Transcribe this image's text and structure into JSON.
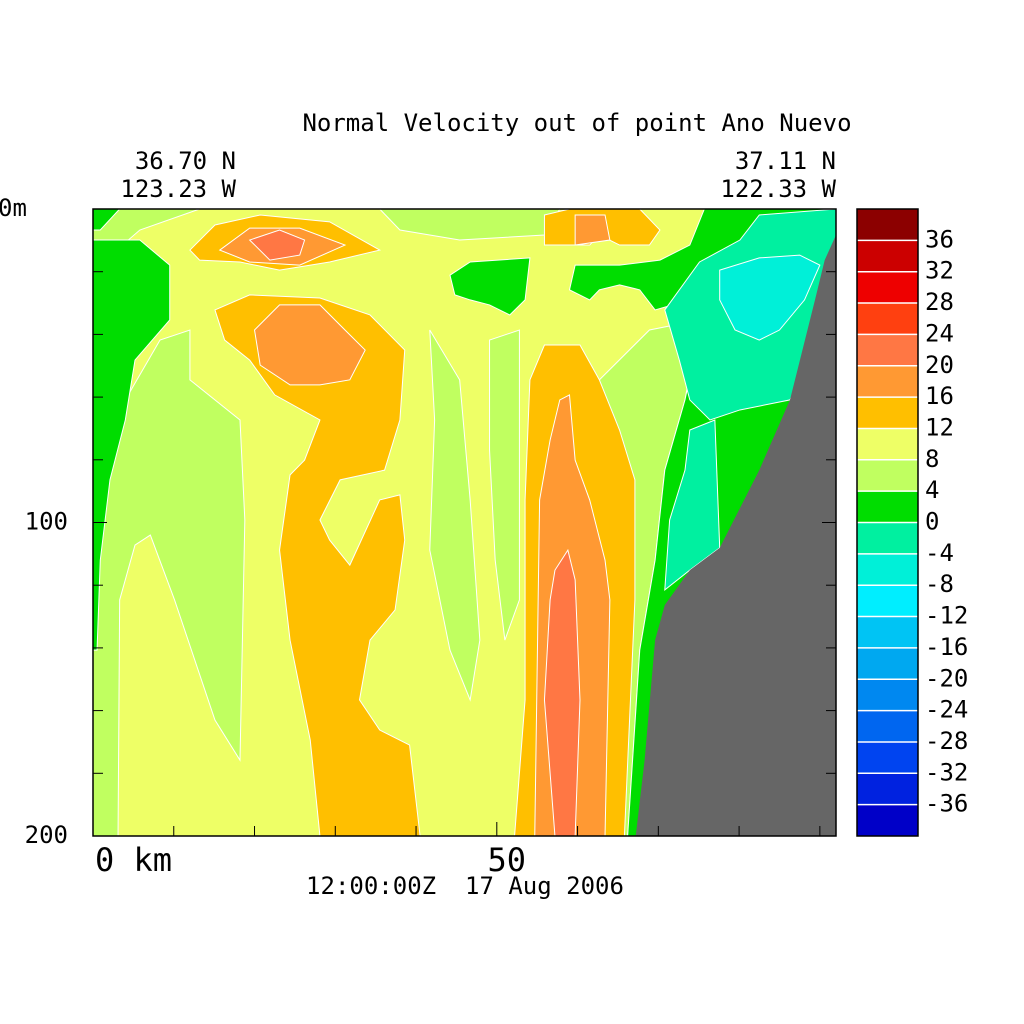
{
  "chart_data": {
    "type": "contour",
    "title": "Normal Velocity out of point Ano Nuevo",
    "left_labels": [
      "36.70 N",
      "123.23 W"
    ],
    "right_labels": [
      "37.11 N",
      "122.33 W"
    ],
    "time_label": "12:00:00Z  17 Aug 2006",
    "xlim": [
      0,
      92
    ],
    "xticks": [
      {
        "value": 0,
        "label": "0 km"
      },
      50
    ],
    "xminor": [
      10,
      20,
      30,
      40,
      60,
      70,
      80,
      90
    ],
    "ylim": [
      0,
      200
    ],
    "yticks": [
      {
        "value": 0,
        "label": "0m"
      },
      100,
      200
    ],
    "yminor": [
      20,
      40,
      60,
      80,
      120,
      140,
      160,
      180
    ],
    "levels": [
      -40,
      -36,
      -32,
      -28,
      -24,
      -20,
      -16,
      -12,
      -8,
      -4,
      0,
      4,
      8,
      12,
      16,
      20,
      24,
      28,
      32,
      36,
      40
    ],
    "colors": [
      "#0000c8",
      "#0022e0",
      "#0044f0",
      "#0066f0",
      "#0088f0",
      "#00a8f0",
      "#00c4f4",
      "#00eeff",
      "#00f0d8",
      "#00f0a0",
      "#00dd00",
      "#c0ff60",
      "#eeff66",
      "#ffbf00",
      "#ff9933",
      "#ff7744",
      "#ff4010",
      "#ee0000",
      "#cc0000",
      "#8c0000"
    ],
    "colorbar_ticks": [
      36,
      32,
      28,
      24,
      20,
      16,
      12,
      8,
      4,
      0,
      -4,
      -8,
      -12,
      -16,
      -20,
      -24,
      -28,
      -32,
      -36
    ],
    "base_level": 8,
    "regions": [
      {
        "level": 4,
        "points": [
          [
            0,
            140.7
          ],
          [
            0.9,
            92.8
          ],
          [
            4,
            60.9
          ],
          [
            8.3,
            41.8
          ],
          [
            12,
            38.6
          ],
          [
            12,
            54.5
          ],
          [
            18.2,
            67.3
          ],
          [
            18.8,
            99.2
          ],
          [
            18.2,
            175.8
          ],
          [
            15.1,
            163
          ],
          [
            10.1,
            124.7
          ],
          [
            7.1,
            104
          ],
          [
            5.2,
            107.2
          ],
          [
            3.3,
            124.7
          ],
          [
            3.1,
            200
          ],
          [
            0,
            200
          ]
        ]
      },
      {
        "level": 4,
        "points": [
          [
            0,
            0
          ],
          [
            13.2,
            0
          ],
          [
            5.8,
            6.7
          ],
          [
            1.5,
            16.3
          ],
          [
            0,
            19.5
          ]
        ]
      },
      {
        "level": 4,
        "points": [
          [
            41.7,
            38.6
          ],
          [
            45.4,
            54.5
          ],
          [
            46.7,
            92.8
          ],
          [
            47.9,
            137.5
          ],
          [
            46.7,
            156.6
          ],
          [
            44.2,
            140.7
          ],
          [
            41.7,
            108.8
          ],
          [
            42.3,
            67.3
          ]
        ]
      },
      {
        "level": 4,
        "points": [
          [
            49.1,
            41.8
          ],
          [
            52.8,
            38.6
          ],
          [
            52.8,
            124.7
          ],
          [
            51,
            137.5
          ],
          [
            49.8,
            112
          ],
          [
            49.1,
            76.9
          ]
        ]
      },
      {
        "level": 4,
        "points": [
          [
            62.7,
            54.5
          ],
          [
            68.9,
            38.6
          ],
          [
            75.1,
            35.4
          ],
          [
            73.3,
            60.9
          ],
          [
            70.8,
            83.3
          ],
          [
            69.6,
            112
          ],
          [
            67.7,
            140.7
          ],
          [
            66.2,
            200
          ],
          [
            63.4,
            200
          ],
          [
            65.2,
            124.7
          ],
          [
            65.8,
            86.4
          ]
        ]
      },
      {
        "level": 4,
        "points": [
          [
            35.5,
            0
          ],
          [
            57.8,
            0
          ],
          [
            55.9,
            8.3
          ],
          [
            45.4,
            9.9
          ],
          [
            38,
            6.7
          ]
        ]
      },
      {
        "level": 0,
        "points": [
          [
            0,
            9.9
          ],
          [
            5.8,
            9.9
          ],
          [
            9.5,
            17.9
          ],
          [
            9.5,
            35.4
          ],
          [
            5.2,
            48.2
          ],
          [
            4,
            67.3
          ],
          [
            2.1,
            86.4
          ],
          [
            0.9,
            112
          ],
          [
            0.5,
            140.7
          ],
          [
            0,
            140.7
          ]
        ]
      },
      {
        "level": 0,
        "points": [
          [
            0,
            0
          ],
          [
            3.3,
            0
          ],
          [
            0.9,
            6.7
          ],
          [
            0,
            6.7
          ]
        ]
      },
      {
        "level": 0,
        "points": [
          [
            66.2,
            200
          ],
          [
            67.7,
            140.7
          ],
          [
            69.6,
            112
          ],
          [
            70.8,
            83.3
          ],
          [
            73.3,
            60.9
          ],
          [
            75.1,
            38.6
          ],
          [
            73.9,
            29
          ],
          [
            69.6,
            32.2
          ],
          [
            67.7,
            25.8
          ],
          [
            65.2,
            24.2
          ],
          [
            62.7,
            25.8
          ],
          [
            61.5,
            29
          ],
          [
            59,
            25.8
          ],
          [
            59.7,
            17.9
          ],
          [
            65.2,
            17.9
          ],
          [
            70.2,
            16.3
          ],
          [
            73.9,
            11.5
          ],
          [
            75.7,
            0
          ],
          [
            92,
            0
          ],
          [
            92,
            200
          ]
        ]
      },
      {
        "level": 0,
        "points": [
          [
            44.2,
            21.1
          ],
          [
            46.7,
            16.9
          ],
          [
            54.1,
            15.6
          ],
          [
            53.5,
            29
          ],
          [
            51.6,
            33.8
          ],
          [
            49.1,
            30.6
          ],
          [
            46.7,
            29
          ],
          [
            44.8,
            27.4
          ]
        ]
      },
      {
        "level": -4,
        "points": [
          [
            70.8,
            32.2
          ],
          [
            75.1,
            16.9
          ],
          [
            80.1,
            9.9
          ],
          [
            82.5,
            1.9
          ],
          [
            92,
            0
          ],
          [
            92,
            29
          ],
          [
            86.3,
            60.9
          ],
          [
            80.1,
            64.1
          ],
          [
            76.4,
            67.3
          ],
          [
            73.9,
            60.9
          ],
          [
            72.6,
            48.2
          ]
        ]
      },
      {
        "level": -4,
        "points": [
          [
            70.8,
            121.5
          ],
          [
            71.4,
            99.2
          ],
          [
            73.3,
            83.3
          ],
          [
            73.9,
            70.5
          ],
          [
            77,
            67.3
          ],
          [
            77.6,
            108.1
          ],
          [
            73.9,
            115.2
          ]
        ]
      },
      {
        "level": -8,
        "points": [
          [
            77.6,
            19.5
          ],
          [
            82.5,
            15.6
          ],
          [
            87.5,
            14.7
          ],
          [
            90,
            17.9
          ],
          [
            88.1,
            29
          ],
          [
            85,
            38.6
          ],
          [
            82.5,
            41.8
          ],
          [
            79.5,
            38.6
          ],
          [
            77.6,
            29
          ]
        ]
      },
      {
        "level": 12,
        "points": [
          [
            12,
            13.1
          ],
          [
            15.1,
            5.1
          ],
          [
            20.7,
            1.9
          ],
          [
            29.3,
            4.1
          ],
          [
            35.5,
            13.1
          ],
          [
            29.3,
            16.9
          ],
          [
            23.1,
            19.5
          ],
          [
            18.2,
            16.9
          ],
          [
            13.2,
            16.3
          ]
        ]
      },
      {
        "level": 12,
        "points": [
          [
            15.1,
            32.2
          ],
          [
            19.4,
            27.4
          ],
          [
            28.1,
            28.4
          ],
          [
            34.3,
            33.8
          ],
          [
            38.6,
            45
          ],
          [
            38,
            67.3
          ],
          [
            36.1,
            83.3
          ],
          [
            30.6,
            86.4
          ],
          [
            28.1,
            99.2
          ],
          [
            29.3,
            105.6
          ],
          [
            31.8,
            113.6
          ],
          [
            35.5,
            92.8
          ],
          [
            38,
            91.2
          ],
          [
            38.6,
            105.6
          ],
          [
            37.4,
            127.9
          ],
          [
            34.3,
            137.5
          ],
          [
            33,
            156.6
          ],
          [
            35.5,
            166.2
          ],
          [
            39.2,
            171
          ],
          [
            40.5,
            200
          ],
          [
            28.1,
            200
          ],
          [
            26.9,
            169.4
          ],
          [
            24.4,
            137.5
          ],
          [
            23.1,
            108.8
          ],
          [
            24.4,
            84.8
          ],
          [
            26.2,
            80.1
          ],
          [
            28.1,
            67.3
          ],
          [
            22.5,
            59.3
          ],
          [
            19.4,
            48.2
          ],
          [
            16.3,
            41.8
          ]
        ]
      },
      {
        "level": 12,
        "points": [
          [
            55.9,
            1.9
          ],
          [
            59,
            0
          ],
          [
            67.7,
            0
          ],
          [
            70.2,
            6.7
          ],
          [
            68.9,
            11.5
          ],
          [
            65.2,
            11.5
          ],
          [
            62.7,
            8.3
          ],
          [
            61.5,
            11.5
          ],
          [
            55.9,
            11.5
          ]
        ]
      },
      {
        "level": 12,
        "points": [
          [
            52.2,
            200
          ],
          [
            53.5,
            156.6
          ],
          [
            53.5,
            92.8
          ],
          [
            54.1,
            54.5
          ],
          [
            55.9,
            43.4
          ],
          [
            60.3,
            43.4
          ],
          [
            62.7,
            54.5
          ],
          [
            65.2,
            70.5
          ],
          [
            67.1,
            86.4
          ],
          [
            67.1,
            124.7
          ],
          [
            65.8,
            200
          ]
        ]
      },
      {
        "level": 16,
        "points": [
          [
            15.7,
            13.1
          ],
          [
            19.4,
            6.1
          ],
          [
            25.6,
            6.1
          ],
          [
            31.2,
            11.5
          ],
          [
            25.6,
            17.9
          ],
          [
            19.4,
            16.9
          ]
        ]
      },
      {
        "level": 16,
        "points": [
          [
            20,
            38.6
          ],
          [
            23.1,
            30.6
          ],
          [
            28.1,
            30.6
          ],
          [
            31.2,
            38.6
          ],
          [
            33.7,
            45
          ],
          [
            31.8,
            54.5
          ],
          [
            28.1,
            56.1
          ],
          [
            24.4,
            56.1
          ],
          [
            20.7,
            49.8
          ]
        ]
      },
      {
        "level": 16,
        "points": [
          [
            59.7,
            1.9
          ],
          [
            63.4,
            1.9
          ],
          [
            64,
            9.9
          ],
          [
            59.7,
            11.5
          ]
        ]
      },
      {
        "level": 16,
        "points": [
          [
            54.7,
            200
          ],
          [
            55.3,
            92.8
          ],
          [
            56.6,
            73.7
          ],
          [
            57.8,
            60.9
          ],
          [
            59,
            59.3
          ],
          [
            59.7,
            80.1
          ],
          [
            61.5,
            92.8
          ],
          [
            63.4,
            112
          ],
          [
            64,
            124.7
          ],
          [
            63.4,
            200
          ]
        ]
      },
      {
        "level": 20,
        "points": [
          [
            19.4,
            9.9
          ],
          [
            23.1,
            6.7
          ],
          [
            26.2,
            9.9
          ],
          [
            25.6,
            14.7
          ],
          [
            21.9,
            16.3
          ]
        ]
      },
      {
        "level": 20,
        "points": [
          [
            56.6,
            124.7
          ],
          [
            57.2,
            115.2
          ],
          [
            58.8,
            108.8
          ],
          [
            59.7,
            118.3
          ],
          [
            60.3,
            156.6
          ],
          [
            59.7,
            200
          ],
          [
            57.2,
            200
          ],
          [
            55.9,
            156.6
          ]
        ]
      }
    ],
    "land": {
      "color": "#666666",
      "points": [
        [
          92,
          8.3
        ],
        [
          90.6,
          16.3
        ],
        [
          89.4,
          29
        ],
        [
          86.3,
          60.9
        ],
        [
          82.5,
          83.3
        ],
        [
          77.6,
          108.1
        ],
        [
          73.9,
          115.2
        ],
        [
          70.8,
          126.3
        ],
        [
          69.6,
          137.5
        ],
        [
          68.3,
          175.8
        ],
        [
          67.2,
          200
        ],
        [
          92,
          200
        ]
      ]
    }
  }
}
